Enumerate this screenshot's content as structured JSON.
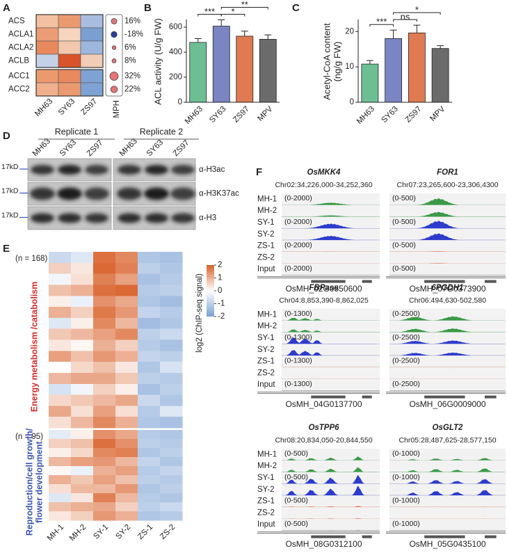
{
  "panel_labels": [
    "A",
    "B",
    "C",
    "D",
    "E",
    "F"
  ],
  "chart_data": [
    {
      "type": "bar",
      "ylabel": "ACL activity (U/g FW)",
      "categories": [
        "MH63",
        "SY63",
        "ZS97",
        "MPV"
      ],
      "values": [
        478,
        608,
        528,
        503
      ],
      "errors": [
        30,
        50,
        40,
        35
      ],
      "colors": [
        "#6dbf93",
        "#7a85c2",
        "#df7a52",
        "#6b6b6b"
      ],
      "ylim": [
        0,
        650
      ],
      "yticks": [
        0,
        200,
        400,
        600
      ],
      "comparisons": [
        {
          "pair": [
            "MH63",
            "SY63"
          ],
          "label": "***"
        },
        {
          "pair": [
            "SY63",
            "ZS97"
          ],
          "label": "*"
        },
        {
          "pair": [
            "SY63",
            "MPV"
          ],
          "label": "**"
        }
      ]
    },
    {
      "type": "bar",
      "ylabel": "Acetyl-CoA content",
      "ylabel_unit": "(ng/g FW)",
      "categories": [
        "MH63",
        "SY63",
        "ZS97",
        "MPV"
      ],
      "values": [
        10.8,
        18,
        19.6,
        15.2
      ],
      "errors": [
        1,
        2.4,
        2.2,
        0.8
      ],
      "colors": [
        "#6dbf93",
        "#7a85c2",
        "#df7a52",
        "#6b6b6b"
      ],
      "ylim": [
        0,
        23
      ],
      "yticks": [
        0,
        10,
        20
      ],
      "comparisons": [
        {
          "pair": [
            "MH63",
            "SY63"
          ],
          "label": "***"
        },
        {
          "pair": [
            "SY63",
            "ZS97"
          ],
          "label": "ns"
        },
        {
          "pair": [
            "SY63",
            "MPV"
          ],
          "label": "*"
        }
      ]
    }
  ],
  "panel_a": {
    "genes": [
      "ACS",
      "ACLA1",
      "ACLA2",
      "ACLB",
      "ACC1",
      "ACC2"
    ],
    "columns": [
      "MH63",
      "SY63",
      "ZS97"
    ],
    "colors": [
      [
        "#f3c1a0",
        "#eb9a70",
        "#aabde0"
      ],
      [
        "#ec9c74",
        "#f6d4bd",
        "#7b9fd1"
      ],
      [
        "#e8895e",
        "#f3c7ac",
        "#9db6dc"
      ],
      [
        "#c4d1e8",
        "#d9542a",
        "#f1ccb6"
      ],
      [
        "#eb9a70",
        "#e8895e",
        "#7ea2d3"
      ],
      [
        "#f0b08d",
        "#eb9a70",
        "#7ea2d3"
      ]
    ],
    "mph_label": "MPH",
    "mph": {
      "values": [
        16,
        -18,
        6,
        8,
        32,
        22
      ],
      "value_labels": [
        "16%",
        "-18%",
        "6%",
        "8%",
        "32%",
        "22%"
      ],
      "colors": [
        "#e3767a",
        "#2c3e9a",
        "#e3767a",
        "#e3767a",
        "#e3767a",
        "#e3767a"
      ]
    }
  },
  "panel_d": {
    "replicates": [
      "Replicate 1",
      "Replicate 2"
    ],
    "lanes": [
      "MH63",
      "SY63",
      "ZS97"
    ],
    "rows": [
      {
        "marker": "17kD",
        "antibody": "α-H3ac"
      },
      {
        "marker": "17kD",
        "antibody": "α-H3K37ac"
      },
      {
        "marker": "17kD",
        "antibody": "α-H3"
      }
    ]
  },
  "panel_e": {
    "columns": [
      "MH-1",
      "MH-2",
      "SY-1",
      "SY-2",
      "ZS-1",
      "ZS-2"
    ],
    "groups": [
      {
        "n_label": "(n = 168)",
        "title": [
          "Energy metabolism /catabolism"
        ],
        "color": "#d42a2a",
        "rows": [
          [
            -0.8,
            -0.5,
            1.8,
            1.5,
            -1.2,
            -1.3
          ],
          [
            0.6,
            0.3,
            1.9,
            1.6,
            -1.0,
            -1.2
          ],
          [
            -0.2,
            0.4,
            1.6,
            1.2,
            -1.3,
            -1.1
          ],
          [
            0.8,
            1.0,
            1.8,
            1.9,
            -1.1,
            -1.0
          ],
          [
            0.2,
            -0.3,
            1.4,
            1.1,
            -1.2,
            -1.4
          ],
          [
            1.0,
            0.6,
            1.7,
            1.3,
            -0.9,
            -1.1
          ],
          [
            -0.5,
            0.2,
            1.5,
            0.9,
            -1.4,
            -1.2
          ],
          [
            0.7,
            0.9,
            1.2,
            1.5,
            -1.0,
            -0.8
          ],
          [
            0.3,
            0.1,
            1.0,
            0.6,
            -1.1,
            -1.3
          ],
          [
            1.2,
            0.8,
            1.3,
            1.0,
            -0.9,
            -1.0
          ],
          [
            0.0,
            0.5,
            0.8,
            0.3,
            -1.2,
            -0.6
          ],
          [
            0.9,
            1.1,
            1.1,
            0.7,
            -1.0,
            -1.1
          ],
          [
            -0.6,
            -0.2,
            0.6,
            0.2,
            -1.3,
            -1.0
          ],
          [
            0.5,
            0.7,
            0.9,
            1.1,
            -0.8,
            -1.2
          ],
          [
            1.1,
            0.4,
            1.2,
            0.4,
            -1.1,
            -0.5
          ],
          [
            0.4,
            0.9,
            1.5,
            1.0,
            -1.2,
            -1.3
          ]
        ]
      },
      {
        "n_label": "(n = 95)",
        "title": [
          "Reproduction/cell growth/",
          "flower development"
        ],
        "color": "#3b55b0",
        "rows": [
          [
            -0.4,
            0.2,
            1.4,
            1.1,
            -1.1,
            -1.2
          ],
          [
            0.6,
            0.8,
            1.8,
            1.4,
            -1.0,
            -1.1
          ],
          [
            0.2,
            0.5,
            1.5,
            1.6,
            -1.2,
            -1.0
          ],
          [
            0.9,
            1.2,
            1.3,
            0.9,
            -0.9,
            -1.2
          ],
          [
            0.1,
            -0.3,
            1.0,
            1.2,
            -1.1,
            -0.9
          ],
          [
            1.0,
            0.7,
            1.2,
            0.8,
            -1.0,
            -1.1
          ],
          [
            0.4,
            0.9,
            0.9,
            1.3,
            -1.2,
            -1.0
          ],
          [
            -0.5,
            0.3,
            1.6,
            0.9,
            -1.1,
            -1.2
          ],
          [
            0.8,
            1.0,
            1.1,
            0.6,
            -1.0,
            -0.8
          ],
          [
            0.3,
            0.6,
            1.3,
            1.0,
            -1.2,
            -1.1
          ]
        ]
      }
    ],
    "colorbar": {
      "label": "log2 (ChIP-seq signal)",
      "lim": [
        -2,
        2
      ],
      "ticks": [
        2,
        1,
        0,
        -1,
        -2
      ],
      "colors": [
        "#7aa0d4",
        "#ffffff",
        "#d8612a"
      ]
    }
  },
  "panel_f": {
    "tracks": [
      "MH-1",
      "MH-2",
      "SY-1",
      "SY-2",
      "ZS-1",
      "ZS-2",
      "Input"
    ],
    "track_colors": [
      "#3a9a48",
      "#3a9a48",
      "#2d3ccc",
      "#2d3ccc",
      "#e4785a",
      "#e4785a",
      "#888888"
    ],
    "loci": [
      {
        "gene": "OsMKK4",
        "coords": "Chr02:34,226,000-34,252,360",
        "range_label": "(0-2000)",
        "range_max": 2000,
        "signal": [
          500,
          300,
          1000,
          900,
          60,
          50,
          20
        ],
        "gene_id": "OsMH_02G0550600"
      },
      {
        "gene": "FOR1",
        "coords": "Chr07:23,265,600-23,306,4300",
        "range_label": "(0-500)",
        "range_max": 500,
        "signal": [
          350,
          250,
          400,
          350,
          30,
          30,
          15
        ],
        "gene_id": "OsMH_07G0373900"
      },
      {
        "gene": "FBPase",
        "coords": "Chr04:8,853,390-8,862,025",
        "range_label": "(0-1300)",
        "range_max": 1300,
        "signal": [
          400,
          400,
          900,
          800,
          30,
          20,
          10
        ],
        "gene_id": "OsMH_04G0137700"
      },
      {
        "gene": "6PGDH1",
        "coords": "Chr06:494,630-502,580",
        "range_label": "(0-2500)",
        "range_max": 2500,
        "signal": [
          1100,
          1000,
          900,
          800,
          60,
          30,
          20
        ],
        "gene_id": "OsMH_06G0009000"
      },
      {
        "gene": "OsTPP6",
        "coords": "Chr08:20,834,050-20,844,550",
        "range_label": "(0-500)",
        "range_max": 500,
        "signal": [
          200,
          250,
          450,
          500,
          60,
          40,
          30
        ],
        "gene_id": "OsMH_08G0312100"
      },
      {
        "gene": "OsGLT2",
        "coords": "Chr05:28,487,625-28,577,150",
        "range_label": "(0-1000)",
        "range_max": 1000,
        "signal": [
          250,
          400,
          500,
          600,
          40,
          30,
          20
        ],
        "gene_id": "OsMH_05G0435100"
      }
    ]
  }
}
